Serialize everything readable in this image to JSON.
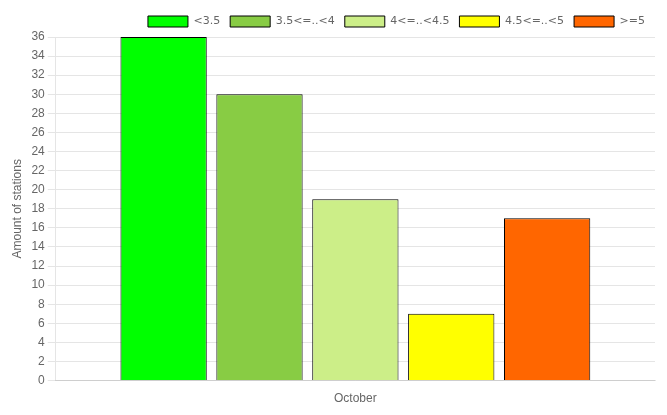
{
  "chart_data": {
    "type": "bar",
    "categories": [
      "October"
    ],
    "series": [
      {
        "name": "<3.5",
        "color": "#00ff00",
        "values": [
          36
        ]
      },
      {
        "name": "3.5<=..<4",
        "color": "#88cc44",
        "values": [
          30
        ]
      },
      {
        "name": "4<=..<4.5",
        "color": "#ccee88",
        "values": [
          19
        ]
      },
      {
        "name": "4.5<=..<5",
        "color": "#ffff00",
        "values": [
          7
        ]
      },
      {
        "name": ">=5",
        "color": "#ff6600",
        "values": [
          17
        ]
      }
    ],
    "ylabel": "Amount of stations",
    "ylim": [
      0,
      36
    ],
    "yticks": [
      0,
      2,
      4,
      6,
      8,
      10,
      12,
      14,
      16,
      18,
      20,
      22,
      24,
      26,
      28,
      30,
      32,
      34,
      36
    ],
    "grid": true,
    "legend": "upper right"
  }
}
